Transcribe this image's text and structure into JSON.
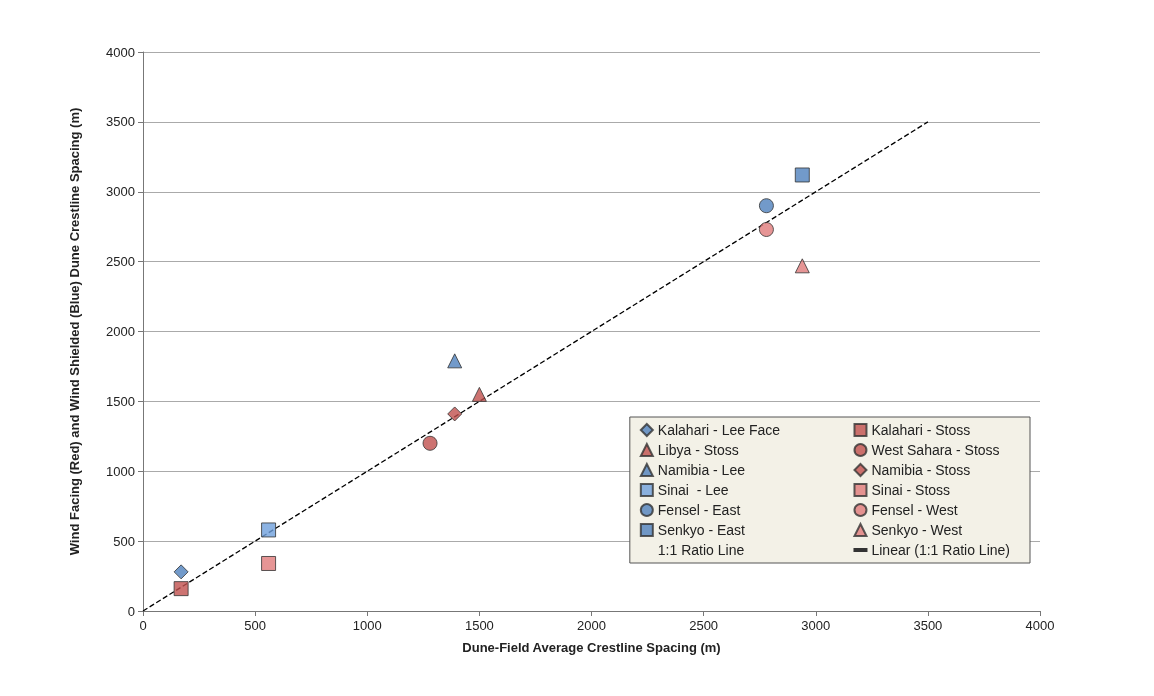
{
  "chart_data": {
    "type": "scatter",
    "xlabel": "Dune-Field Average Crestline Spacing (m)",
    "ylabel": "Wind Facing (Red) and Wind Shielded (Blue) Dune Crestline Spacing (m)",
    "xlim": [
      0,
      4000
    ],
    "xticks": [
      0,
      500,
      1000,
      1500,
      2000,
      2500,
      3000,
      3500,
      4000
    ],
    "ylim": [
      0,
      4000
    ],
    "yticks": [
      0,
      500,
      1000,
      1500,
      2000,
      2500,
      3000,
      3500,
      4000
    ],
    "grid": "y",
    "legend": "bottom right",
    "series": [
      {
        "name": "Kalahari - Lee Face",
        "color": "#4f81bd",
        "marker": "diamond",
        "x": [
          170
        ],
        "values": [
          280
        ]
      },
      {
        "name": "Kalahari - Stoss",
        "color": "#c0504d",
        "marker": "square",
        "x": [
          170
        ],
        "values": [
          160
        ]
      },
      {
        "name": "Libya - Stoss",
        "color": "#c0504d",
        "marker": "triangle",
        "x": [
          1500
        ],
        "values": [
          1550
        ]
      },
      {
        "name": "West Sahara - Stoss",
        "color": "#c0504d",
        "marker": "circle",
        "x": [
          1280
        ],
        "values": [
          1200
        ]
      },
      {
        "name": "Namibia - Lee",
        "color": "#4f81bd",
        "marker": "triangle",
        "x": [
          1390
        ],
        "values": [
          1790
        ]
      },
      {
        "name": "Namibia - Stoss",
        "color": "#c0504d",
        "marker": "diamond",
        "x": [
          1390
        ],
        "values": [
          1410
        ]
      },
      {
        "name": "Sinai  - Lee",
        "color": "#6fa0dc",
        "marker": "square",
        "x": [
          560
        ],
        "values": [
          580
        ]
      },
      {
        "name": "Sinai - Stoss",
        "color": "#e07b7a",
        "marker": "square",
        "x": [
          560
        ],
        "values": [
          340
        ]
      },
      {
        "name": "Fensel - East",
        "color": "#4f81bd",
        "marker": "circle",
        "x": [
          2780
        ],
        "values": [
          2900
        ]
      },
      {
        "name": "Fensel - West",
        "color": "#e07b7a",
        "marker": "circle",
        "x": [
          2780
        ],
        "values": [
          2730
        ]
      },
      {
        "name": "Senkyo - East",
        "color": "#4f81bd",
        "marker": "square",
        "x": [
          2940
        ],
        "values": [
          3120
        ]
      },
      {
        "name": "Senkyo - West",
        "color": "#e07b7a",
        "marker": "triangle",
        "x": [
          2940
        ],
        "values": [
          2470
        ]
      },
      {
        "name": "1:1 Ratio Line",
        "type": "line",
        "marker": "none"
      },
      {
        "name": "Linear (1:1 Ratio Line)",
        "type": "line",
        "color": "#000000",
        "marker": "none",
        "line_style": "dashed",
        "x": [
          0,
          3500
        ],
        "values": [
          0,
          3500
        ]
      }
    ]
  }
}
